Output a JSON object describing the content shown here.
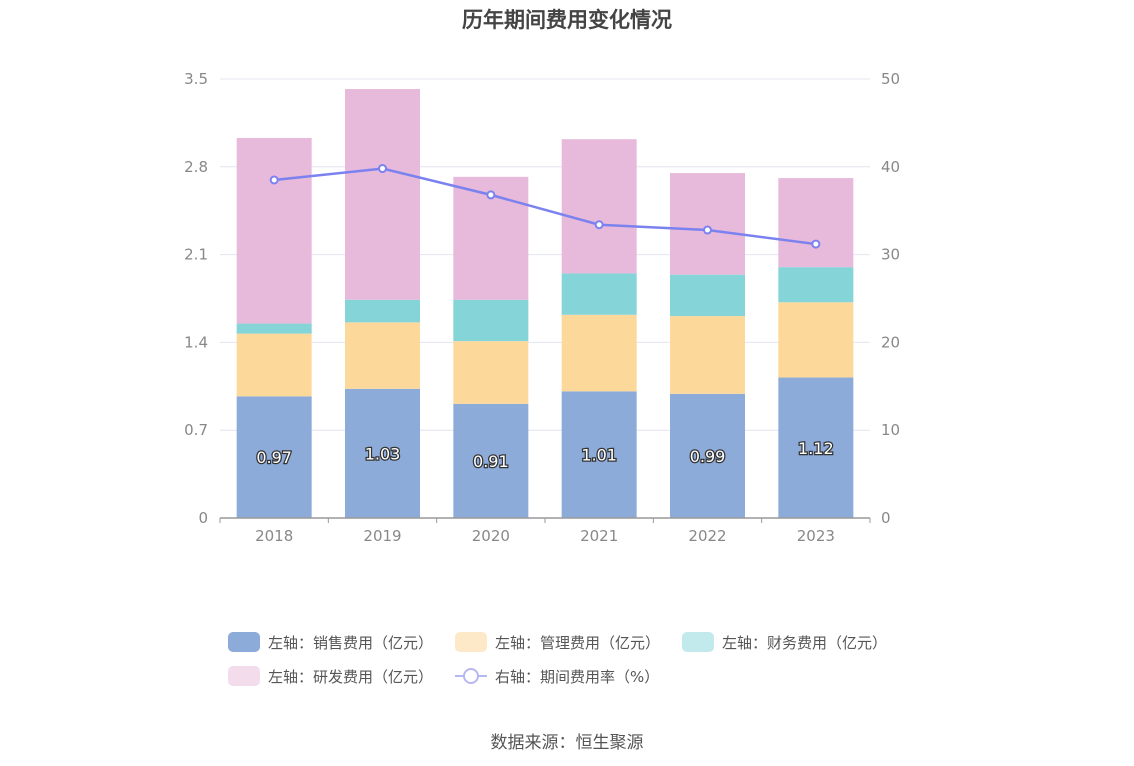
{
  "chart_data": {
    "type": "bar",
    "title": "历年期间费用变化情况",
    "categories": [
      "2018",
      "2019",
      "2020",
      "2021",
      "2022",
      "2023"
    ],
    "stacked": true,
    "series": [
      {
        "name": "左轴：销售费用（亿元）",
        "axis": "left",
        "type": "bar",
        "color": "#8dabd9",
        "values": [
          0.97,
          1.03,
          0.91,
          1.01,
          0.99,
          1.12
        ]
      },
      {
        "name": "左轴：管理费用（亿元）",
        "axis": "left",
        "type": "bar",
        "color": "#fdd89b",
        "values": [
          0.5,
          0.53,
          0.5,
          0.61,
          0.62,
          0.6
        ]
      },
      {
        "name": "左轴：财务费用（亿元）",
        "axis": "left",
        "type": "bar",
        "color": "#84d4d8",
        "values": [
          0.08,
          0.18,
          0.33,
          0.33,
          0.33,
          0.28
        ]
      },
      {
        "name": "左轴：研发费用（亿元）",
        "axis": "left",
        "type": "bar",
        "color": "#e7b9da",
        "values": [
          1.48,
          1.68,
          0.98,
          1.07,
          0.81,
          0.71
        ]
      },
      {
        "name": "右轴：期间费用率（%）",
        "axis": "right",
        "type": "line",
        "color": "#7b82ef",
        "values": [
          38.5,
          39.8,
          36.8,
          33.4,
          32.8,
          31.2
        ]
      }
    ],
    "left_axis": {
      "ticks": [
        "0",
        "0.7",
        "1.4",
        "2.1",
        "2.8",
        "3.5"
      ],
      "ylim": [
        0,
        3.5
      ]
    },
    "right_axis": {
      "ticks": [
        "0",
        "10",
        "20",
        "30",
        "40",
        "50"
      ],
      "ylim": [
        0,
        50
      ]
    },
    "bar_labels": [
      "0.97",
      "1.03",
      "0.91",
      "1.01",
      "0.99",
      "1.12"
    ],
    "grid": true,
    "legend_position": "bottom"
  },
  "legend": {
    "items": [
      {
        "label": "左轴：销售费用（亿元）",
        "color": "#8dabd9",
        "kind": "bar"
      },
      {
        "label": "左轴：管理费用（亿元）",
        "color": "#fde8c8",
        "kind": "bar"
      },
      {
        "label": "左轴：财务费用（亿元）",
        "color": "#c2e9eb",
        "kind": "bar"
      },
      {
        "label": "左轴：研发费用（亿元）",
        "color": "#f3dcec",
        "kind": "bar"
      },
      {
        "label": "右轴：期间费用率（%）",
        "color": "#b7b7f3",
        "kind": "line"
      }
    ]
  },
  "source": "数据来源：恒生聚源"
}
